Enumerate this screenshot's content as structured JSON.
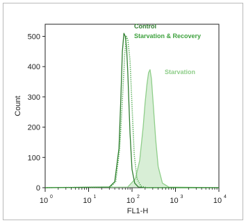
{
  "chart_data": {
    "type": "line",
    "title": "",
    "xlabel": "FL1-H",
    "ylabel": "Count",
    "xscale": "log",
    "xlim": [
      1,
      10000
    ],
    "ylim": [
      0,
      540
    ],
    "x_ticks": [
      {
        "value": 1,
        "base": "10",
        "exp": "0"
      },
      {
        "value": 10,
        "base": "10",
        "exp": "1"
      },
      {
        "value": 100,
        "base": "10",
        "exp": "2"
      },
      {
        "value": 1000,
        "base": "10",
        "exp": "3"
      },
      {
        "value": 10000,
        "base": "10",
        "exp": "4"
      }
    ],
    "y_ticks": [
      0,
      100,
      200,
      300,
      400,
      500
    ],
    "grid": false,
    "legend": "inline labels near peaks",
    "series": [
      {
        "name": "Control",
        "color": "#2f7d2f",
        "style": "solid",
        "fill": false,
        "x": [
          1,
          30,
          40,
          50,
          55,
          60,
          65,
          70,
          75,
          80,
          90,
          100,
          115,
          140,
          200,
          10000
        ],
        "y": [
          0,
          2,
          20,
          130,
          290,
          450,
          510,
          500,
          460,
          380,
          180,
          60,
          15,
          2,
          0,
          0
        ]
      },
      {
        "name": "Starvation & Recovery",
        "color": "#3fa23f",
        "style": "dotted",
        "fill": false,
        "x": [
          1,
          32,
          42,
          52,
          60,
          68,
          74,
          80,
          90,
          100,
          112,
          130,
          160,
          220,
          10000
        ],
        "y": [
          0,
          2,
          20,
          130,
          290,
          440,
          500,
          490,
          420,
          270,
          110,
          30,
          5,
          0,
          0
        ]
      },
      {
        "name": "Starvation",
        "color": "#8fce8a",
        "style": "solid",
        "fill": true,
        "x": [
          1,
          80,
          120,
          150,
          180,
          200,
          220,
          240,
          260,
          280,
          310,
          350,
          400,
          500,
          700,
          10000
        ],
        "y": [
          0,
          2,
          30,
          90,
          200,
          280,
          340,
          380,
          390,
          360,
          270,
          160,
          70,
          15,
          2,
          0
        ]
      }
    ],
    "annotations": [
      {
        "text": "Control",
        "color": "#2f7d2f"
      },
      {
        "text": "Starvation & Recovery",
        "color": "#3fa23f"
      },
      {
        "text": "Starvation",
        "color": "#8fce8a"
      }
    ]
  }
}
